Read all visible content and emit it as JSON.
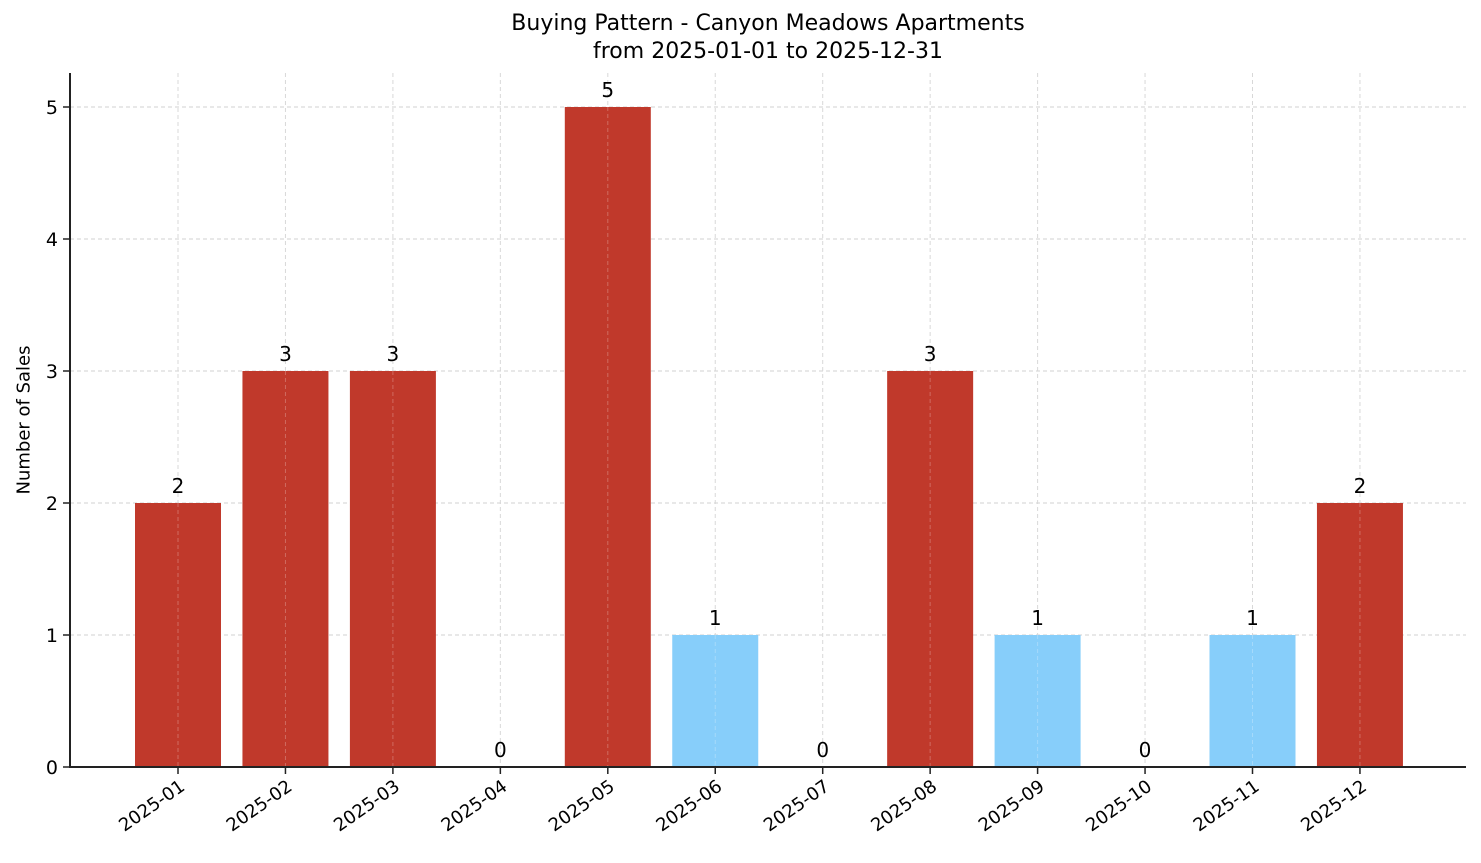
{
  "chart_data": {
    "type": "bar",
    "title": "Buying Pattern - Canyon Meadows Apartments",
    "subtitle": "from 2025-01-01 to 2025-12-31",
    "xlabel": "",
    "ylabel": "Number of Sales",
    "categories": [
      "2025-01",
      "2025-02",
      "2025-03",
      "2025-04",
      "2025-05",
      "2025-06",
      "2025-07",
      "2025-08",
      "2025-09",
      "2025-10",
      "2025-11",
      "2025-12"
    ],
    "values": [
      2,
      3,
      3,
      0,
      5,
      1,
      0,
      3,
      1,
      0,
      1,
      2
    ],
    "bar_colors": [
      "#c0392b",
      "#c0392b",
      "#c0392b",
      "#c0392b",
      "#c0392b",
      "#87cefa",
      "#87cefa",
      "#c0392b",
      "#87cefa",
      "#87cefa",
      "#87cefa",
      "#c0392b"
    ],
    "data_labels": [
      "2",
      "3",
      "3",
      "0",
      "5",
      "1",
      "0",
      "3",
      "1",
      "0",
      "1",
      "2"
    ],
    "yticks": [
      0,
      1,
      2,
      3,
      4,
      5
    ],
    "ylim": [
      0,
      5.25
    ],
    "grid": true,
    "legend": null
  }
}
